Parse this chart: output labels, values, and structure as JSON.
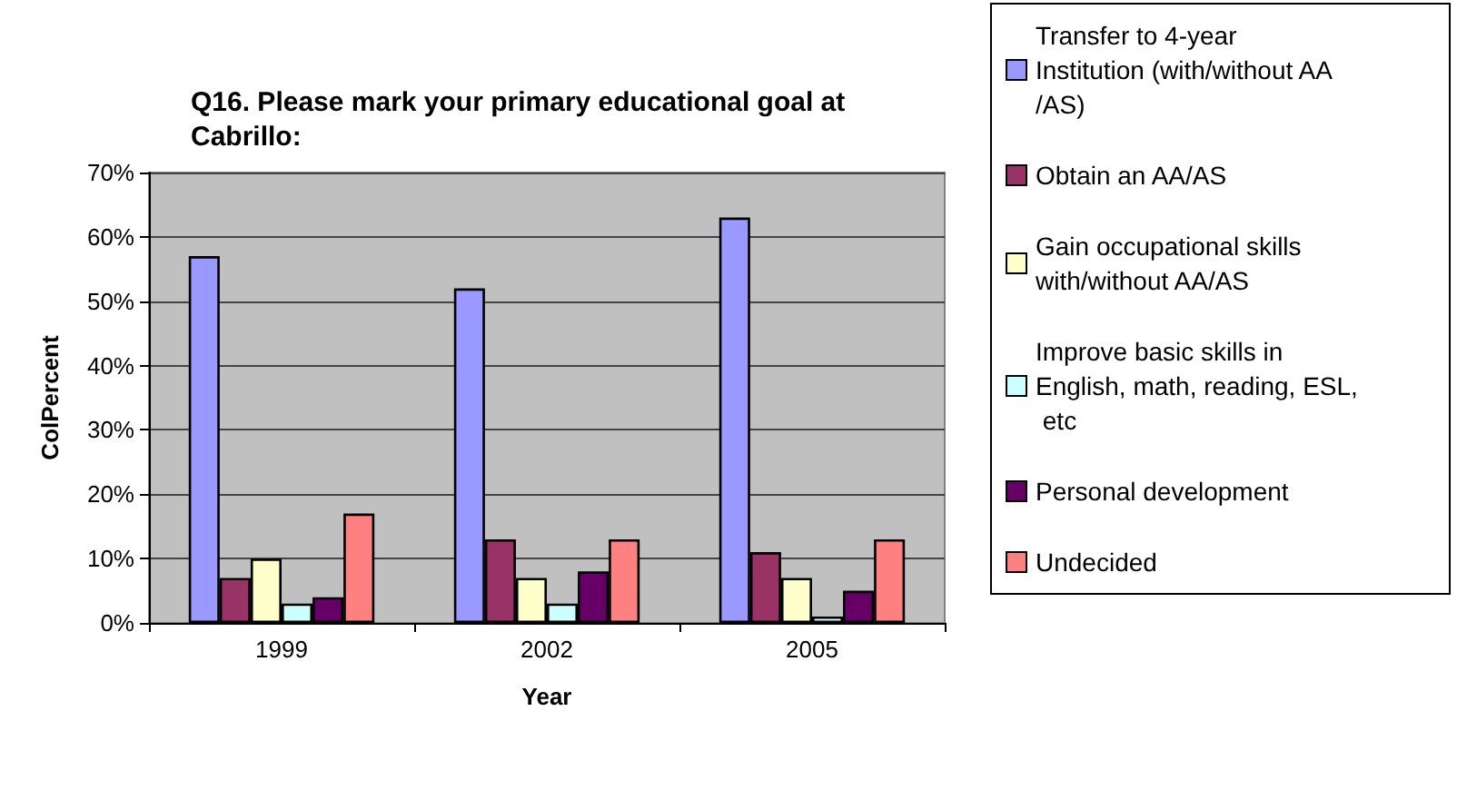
{
  "chart_data": {
    "type": "bar",
    "title": "Q16. Please mark your primary educational goal at Cabrillo:",
    "xlabel": "Year",
    "ylabel": "ColPercent",
    "categories": [
      "1999",
      "2002",
      "2005"
    ],
    "series": [
      {
        "name": "Transfer to 4-year Institution (with/without AA/AS)",
        "color": "#9999ff",
        "values": [
          57,
          52,
          63
        ]
      },
      {
        "name": "Obtain an AA/AS",
        "color": "#993366",
        "values": [
          7,
          13,
          11
        ]
      },
      {
        "name": "Gain occupational skills with/without AA/AS",
        "color": "#ffffcc",
        "values": [
          10,
          7,
          7
        ]
      },
      {
        "name": "Improve basic skills in English, math, reading, ESL, etc",
        "color": "#ccffff",
        "values": [
          3,
          3,
          1
        ]
      },
      {
        "name": "Personal development",
        "color": "#660066",
        "values": [
          4,
          8,
          5
        ]
      },
      {
        "name": "Undecided",
        "color": "#ff8080",
        "values": [
          17,
          13,
          13
        ]
      }
    ],
    "ylim": [
      0,
      70
    ],
    "yticks": [
      {
        "value": 0,
        "label": "0%"
      },
      {
        "value": 10,
        "label": "10%"
      },
      {
        "value": 20,
        "label": "20%"
      },
      {
        "value": 30,
        "label": "30%"
      },
      {
        "value": 40,
        "label": "40%"
      },
      {
        "value": 50,
        "label": "50%"
      },
      {
        "value": 60,
        "label": "60%"
      },
      {
        "value": 70,
        "label": "70%"
      }
    ],
    "grid": "y",
    "legend": "right"
  }
}
